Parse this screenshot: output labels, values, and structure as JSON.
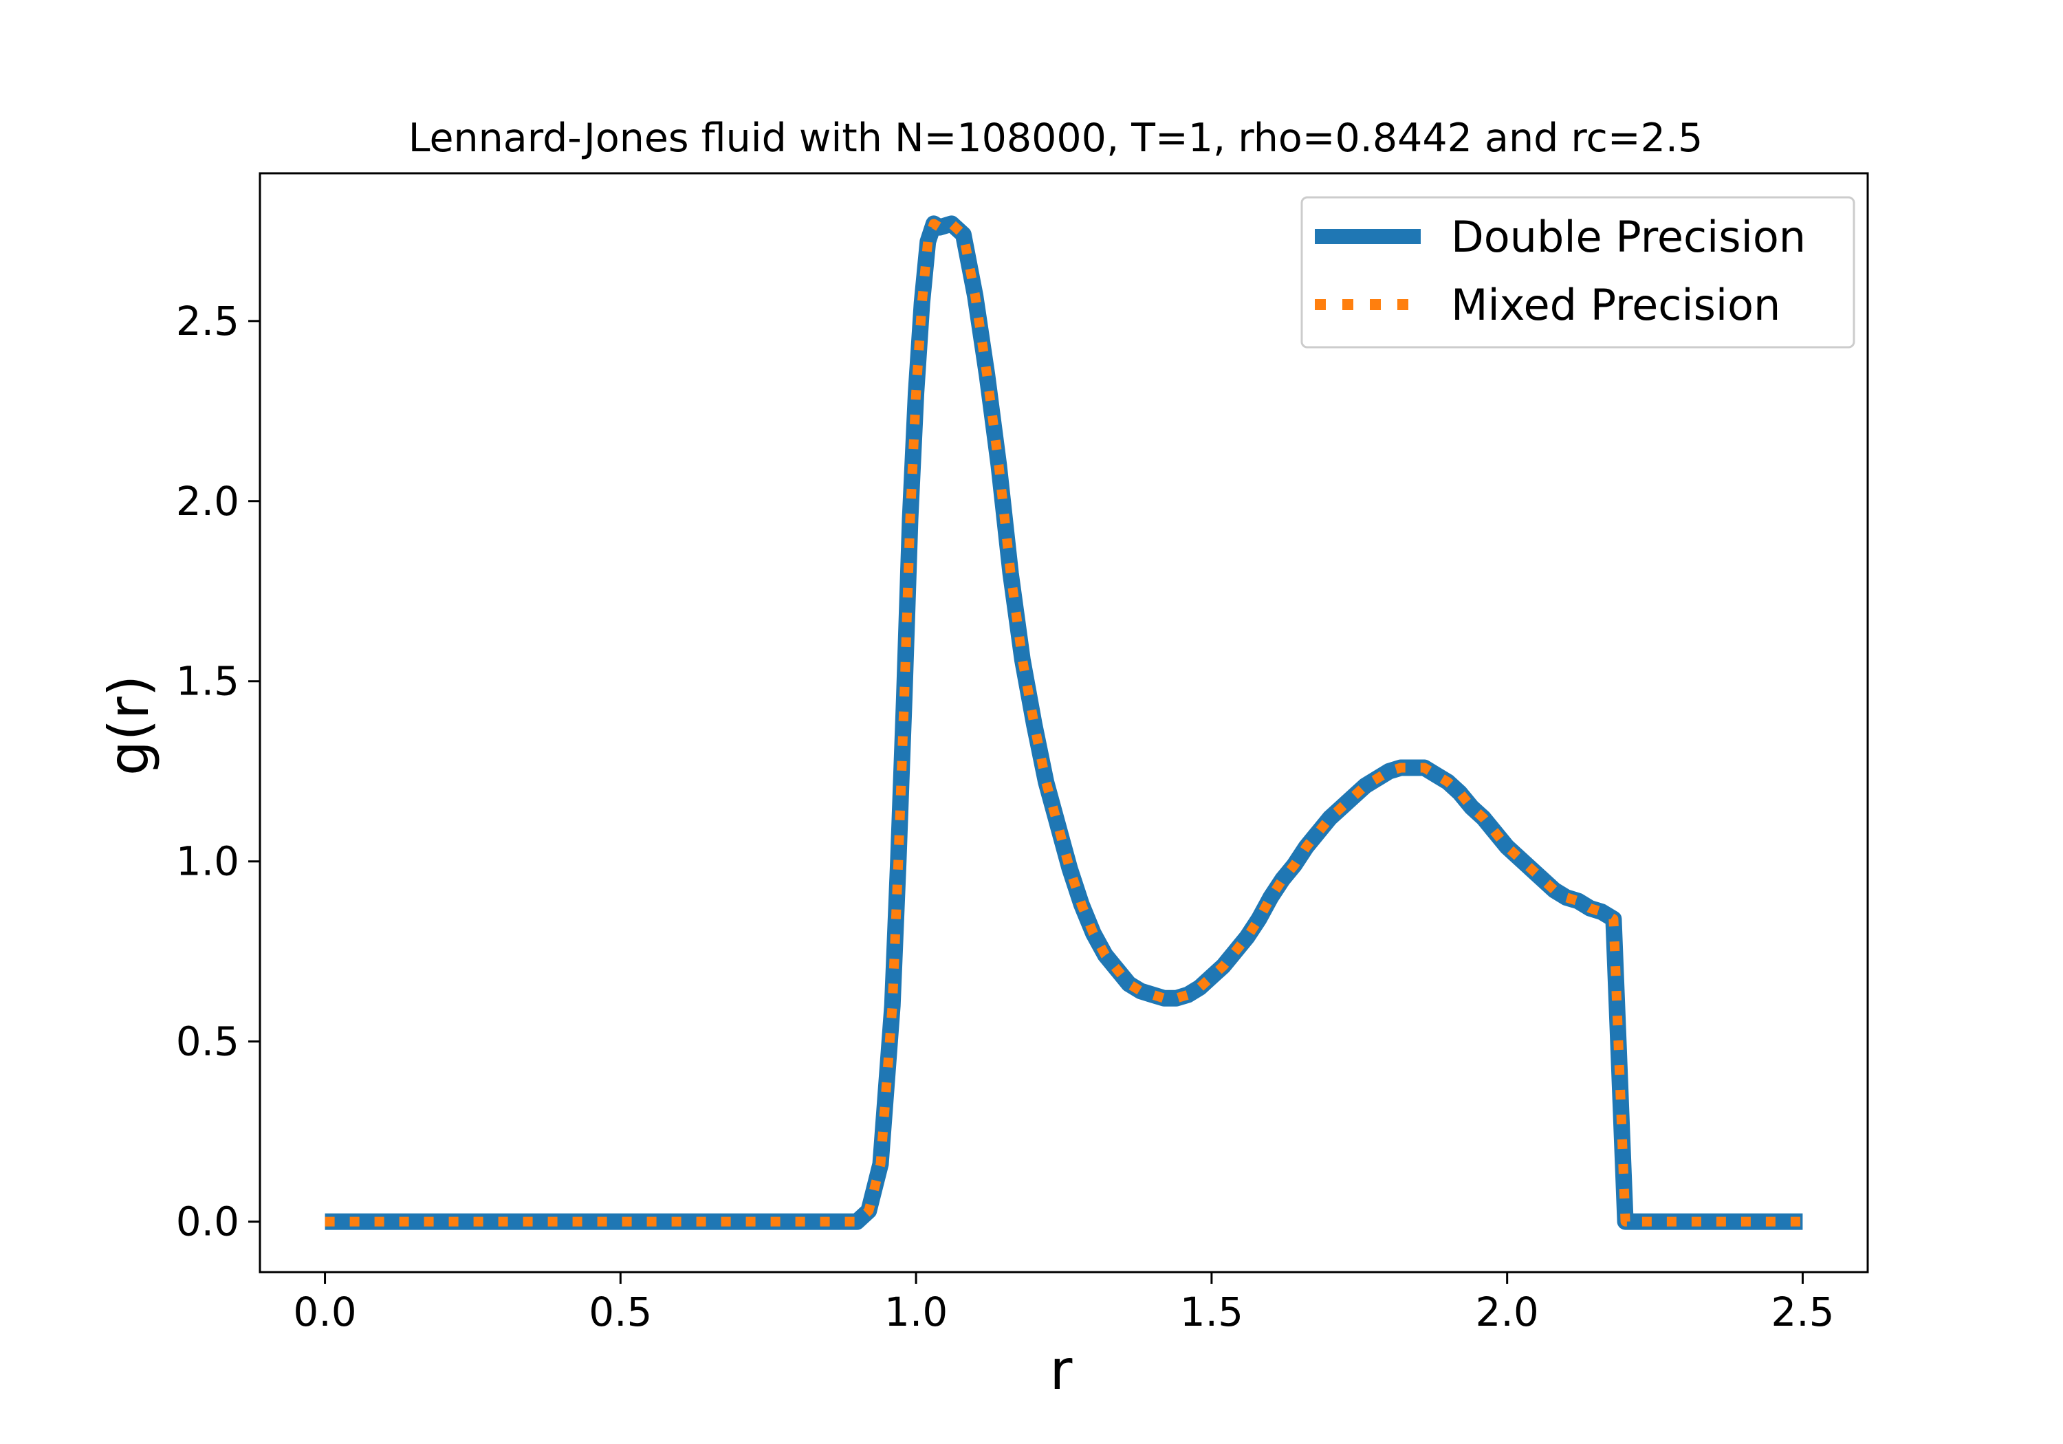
{
  "chart_data": {
    "type": "line",
    "title": "Lennard-Jones fluid with N=108000, T=1, rho=0.8442 and rc=2.5",
    "xlabel": "r",
    "ylabel": "g(r)",
    "xlim": [
      -0.11,
      2.61
    ],
    "ylim": [
      -0.14,
      2.91
    ],
    "xticks": [
      0.0,
      0.5,
      1.0,
      1.5,
      2.0,
      2.5
    ],
    "xtick_labels": [
      "0.0",
      "0.5",
      "1.0",
      "1.5",
      "2.0",
      "2.5"
    ],
    "yticks": [
      0.0,
      0.5,
      1.0,
      1.5,
      2.0,
      2.5
    ],
    "ytick_labels": [
      "0.0",
      "0.5",
      "1.0",
      "1.5",
      "2.0",
      "2.5"
    ],
    "grid": false,
    "legend_position": "top-right",
    "x": [
      0.0,
      0.05,
      0.1,
      0.15,
      0.2,
      0.25,
      0.3,
      0.35,
      0.4,
      0.45,
      0.5,
      0.55,
      0.6,
      0.65,
      0.7,
      0.75,
      0.8,
      0.85,
      0.88,
      0.9,
      0.92,
      0.94,
      0.96,
      0.97,
      0.98,
      0.99,
      1.0,
      1.01,
      1.02,
      1.03,
      1.04,
      1.06,
      1.08,
      1.1,
      1.12,
      1.14,
      1.16,
      1.18,
      1.2,
      1.22,
      1.24,
      1.26,
      1.28,
      1.3,
      1.32,
      1.34,
      1.36,
      1.38,
      1.4,
      1.42,
      1.44,
      1.46,
      1.48,
      1.5,
      1.52,
      1.54,
      1.56,
      1.58,
      1.6,
      1.62,
      1.64,
      1.66,
      1.68,
      1.7,
      1.72,
      1.74,
      1.76,
      1.78,
      1.8,
      1.82,
      1.84,
      1.86,
      1.88,
      1.9,
      1.92,
      1.94,
      1.96,
      1.98,
      2.0,
      2.02,
      2.04,
      2.06,
      2.08,
      2.1,
      2.12,
      2.14,
      2.16,
      2.18,
      2.2,
      2.22,
      2.24,
      2.26,
      2.28,
      2.3,
      2.32,
      2.34,
      2.36,
      2.38,
      2.4,
      2.42,
      2.44,
      2.46,
      2.48,
      2.5
    ],
    "series": [
      {
        "name": "Double Precision",
        "color": "#1f77b4",
        "linestyle": "solid",
        "values": [
          0.0,
          0.0,
          0.0,
          0.0,
          0.0,
          0.0,
          0.0,
          0.0,
          0.0,
          0.0,
          0.0,
          0.0,
          0.0,
          0.0,
          0.0,
          0.0,
          0.0,
          0.0,
          0.0,
          0.0,
          0.03,
          0.16,
          0.6,
          1.0,
          1.45,
          1.95,
          2.3,
          2.55,
          2.72,
          2.77,
          2.76,
          2.77,
          2.74,
          2.57,
          2.35,
          2.1,
          1.8,
          1.56,
          1.38,
          1.22,
          1.1,
          0.98,
          0.88,
          0.8,
          0.74,
          0.7,
          0.66,
          0.64,
          0.63,
          0.62,
          0.62,
          0.63,
          0.65,
          0.68,
          0.71,
          0.75,
          0.79,
          0.84,
          0.9,
          0.95,
          0.99,
          1.04,
          1.08,
          1.12,
          1.15,
          1.18,
          1.21,
          1.23,
          1.25,
          1.26,
          1.26,
          1.26,
          1.24,
          1.22,
          1.19,
          1.15,
          1.12,
          1.08,
          1.04,
          1.01,
          0.98,
          0.95,
          0.92,
          0.9,
          0.89,
          0.87,
          0.86,
          0.84,
          0.0,
          0.0,
          0.0,
          0.0,
          0.0,
          0.0,
          0.0,
          0.0,
          0.0,
          0.0,
          0.0,
          0.0,
          0.0,
          0.0,
          0.0,
          0.0
        ]
      },
      {
        "name": "Mixed Precision",
        "color": "#ff7f0e",
        "linestyle": "dotted",
        "values": [
          0.0,
          0.0,
          0.0,
          0.0,
          0.0,
          0.0,
          0.0,
          0.0,
          0.0,
          0.0,
          0.0,
          0.0,
          0.0,
          0.0,
          0.0,
          0.0,
          0.0,
          0.0,
          0.0,
          0.0,
          0.03,
          0.16,
          0.6,
          1.0,
          1.45,
          1.95,
          2.3,
          2.55,
          2.72,
          2.77,
          2.76,
          2.77,
          2.74,
          2.57,
          2.35,
          2.1,
          1.8,
          1.56,
          1.38,
          1.22,
          1.1,
          0.98,
          0.88,
          0.8,
          0.74,
          0.7,
          0.66,
          0.64,
          0.63,
          0.62,
          0.62,
          0.63,
          0.65,
          0.68,
          0.71,
          0.75,
          0.79,
          0.84,
          0.9,
          0.95,
          0.99,
          1.04,
          1.08,
          1.12,
          1.15,
          1.18,
          1.21,
          1.23,
          1.25,
          1.26,
          1.26,
          1.26,
          1.24,
          1.22,
          1.19,
          1.15,
          1.12,
          1.08,
          1.04,
          1.01,
          0.98,
          0.95,
          0.92,
          0.9,
          0.89,
          0.87,
          0.86,
          0.84,
          0.0,
          0.0,
          0.0,
          0.0,
          0.0,
          0.0,
          0.0,
          0.0,
          0.0,
          0.0,
          0.0,
          0.0,
          0.0,
          0.0,
          0.0,
          0.0
        ]
      }
    ]
  }
}
